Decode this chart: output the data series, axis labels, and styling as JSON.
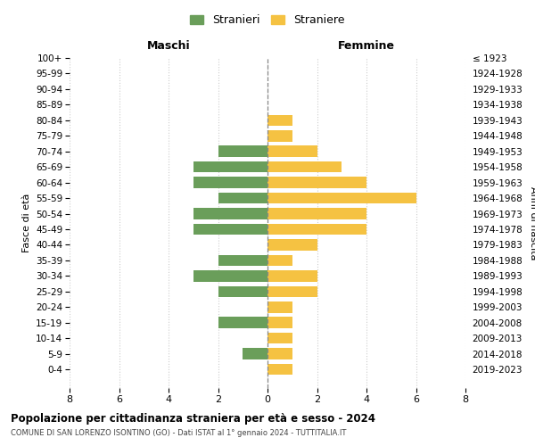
{
  "age_groups": [
    "100+",
    "95-99",
    "90-94",
    "85-89",
    "80-84",
    "75-79",
    "70-74",
    "65-69",
    "60-64",
    "55-59",
    "50-54",
    "45-49",
    "40-44",
    "35-39",
    "30-34",
    "25-29",
    "20-24",
    "15-19",
    "10-14",
    "5-9",
    "0-4"
  ],
  "birth_years": [
    "≤ 1923",
    "1924-1928",
    "1929-1933",
    "1934-1938",
    "1939-1943",
    "1944-1948",
    "1949-1953",
    "1954-1958",
    "1959-1963",
    "1964-1968",
    "1969-1973",
    "1974-1978",
    "1979-1983",
    "1984-1988",
    "1989-1993",
    "1994-1998",
    "1999-2003",
    "2004-2008",
    "2009-2013",
    "2014-2018",
    "2019-2023"
  ],
  "maschi": [
    0,
    0,
    0,
    0,
    0,
    0,
    2,
    3,
    3,
    2,
    3,
    3,
    0,
    2,
    3,
    2,
    0,
    2,
    0,
    1,
    0
  ],
  "femmine": [
    0,
    0,
    0,
    0,
    1,
    1,
    2,
    3,
    4,
    6,
    4,
    4,
    2,
    1,
    2,
    2,
    1,
    1,
    1,
    1,
    1
  ],
  "maschi_color": "#6a9e5a",
  "femmine_color": "#f5c242",
  "title": "Popolazione per cittadinanza straniera per età e sesso - 2024",
  "subtitle": "COMUNE DI SAN LORENZO ISONTINO (GO) - Dati ISTAT al 1° gennaio 2024 - TUTTITALIA.IT",
  "xlabel_left": "Maschi",
  "xlabel_right": "Femmine",
  "ylabel_left": "Fasce di età",
  "ylabel_right": "Anni di nascita",
  "legend_maschi": "Stranieri",
  "legend_femmine": "Straniere",
  "xlim": 8,
  "background_color": "#ffffff",
  "grid_color": "#cccccc",
  "center_line_color": "#888888"
}
